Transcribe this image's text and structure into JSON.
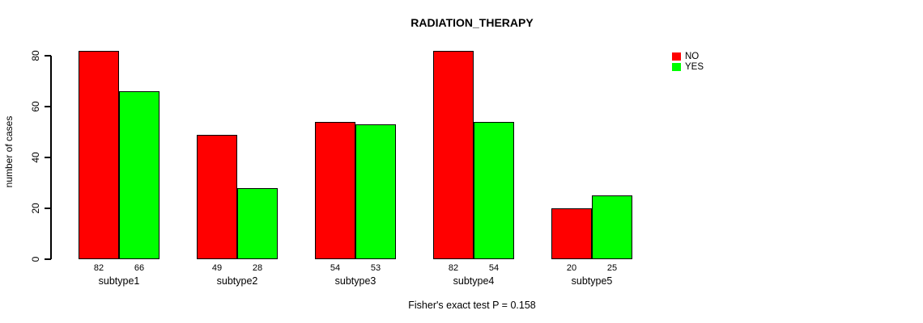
{
  "title": "RADIATION_THERAPY",
  "chart_data": {
    "type": "bar",
    "title": "RADIATION_THERAPY",
    "ylabel": "number of cases",
    "xlabel": "",
    "categories": [
      "subtype1",
      "subtype2",
      "subtype3",
      "subtype4",
      "subtype5"
    ],
    "series": [
      {
        "name": "NO",
        "color": "#ff0000",
        "values": [
          82,
          49,
          54,
          82,
          20
        ]
      },
      {
        "name": "YES",
        "color": "#00ff00",
        "values": [
          66,
          28,
          53,
          54,
          25
        ]
      }
    ],
    "value_labels_shown": true,
    "yticks": [
      0,
      20,
      40,
      60,
      80
    ],
    "ylim": [
      0,
      84
    ],
    "grid": false,
    "legend": {
      "position": "top-right",
      "entries": [
        {
          "label": "NO",
          "color": "#ff0000"
        },
        {
          "label": "YES",
          "color": "#00ff00"
        }
      ]
    },
    "annotation": "Fisher's exact test P = 0.158",
    "colors": {
      "axis": "#000000",
      "text": "#000000",
      "background": "#ffffff"
    }
  }
}
